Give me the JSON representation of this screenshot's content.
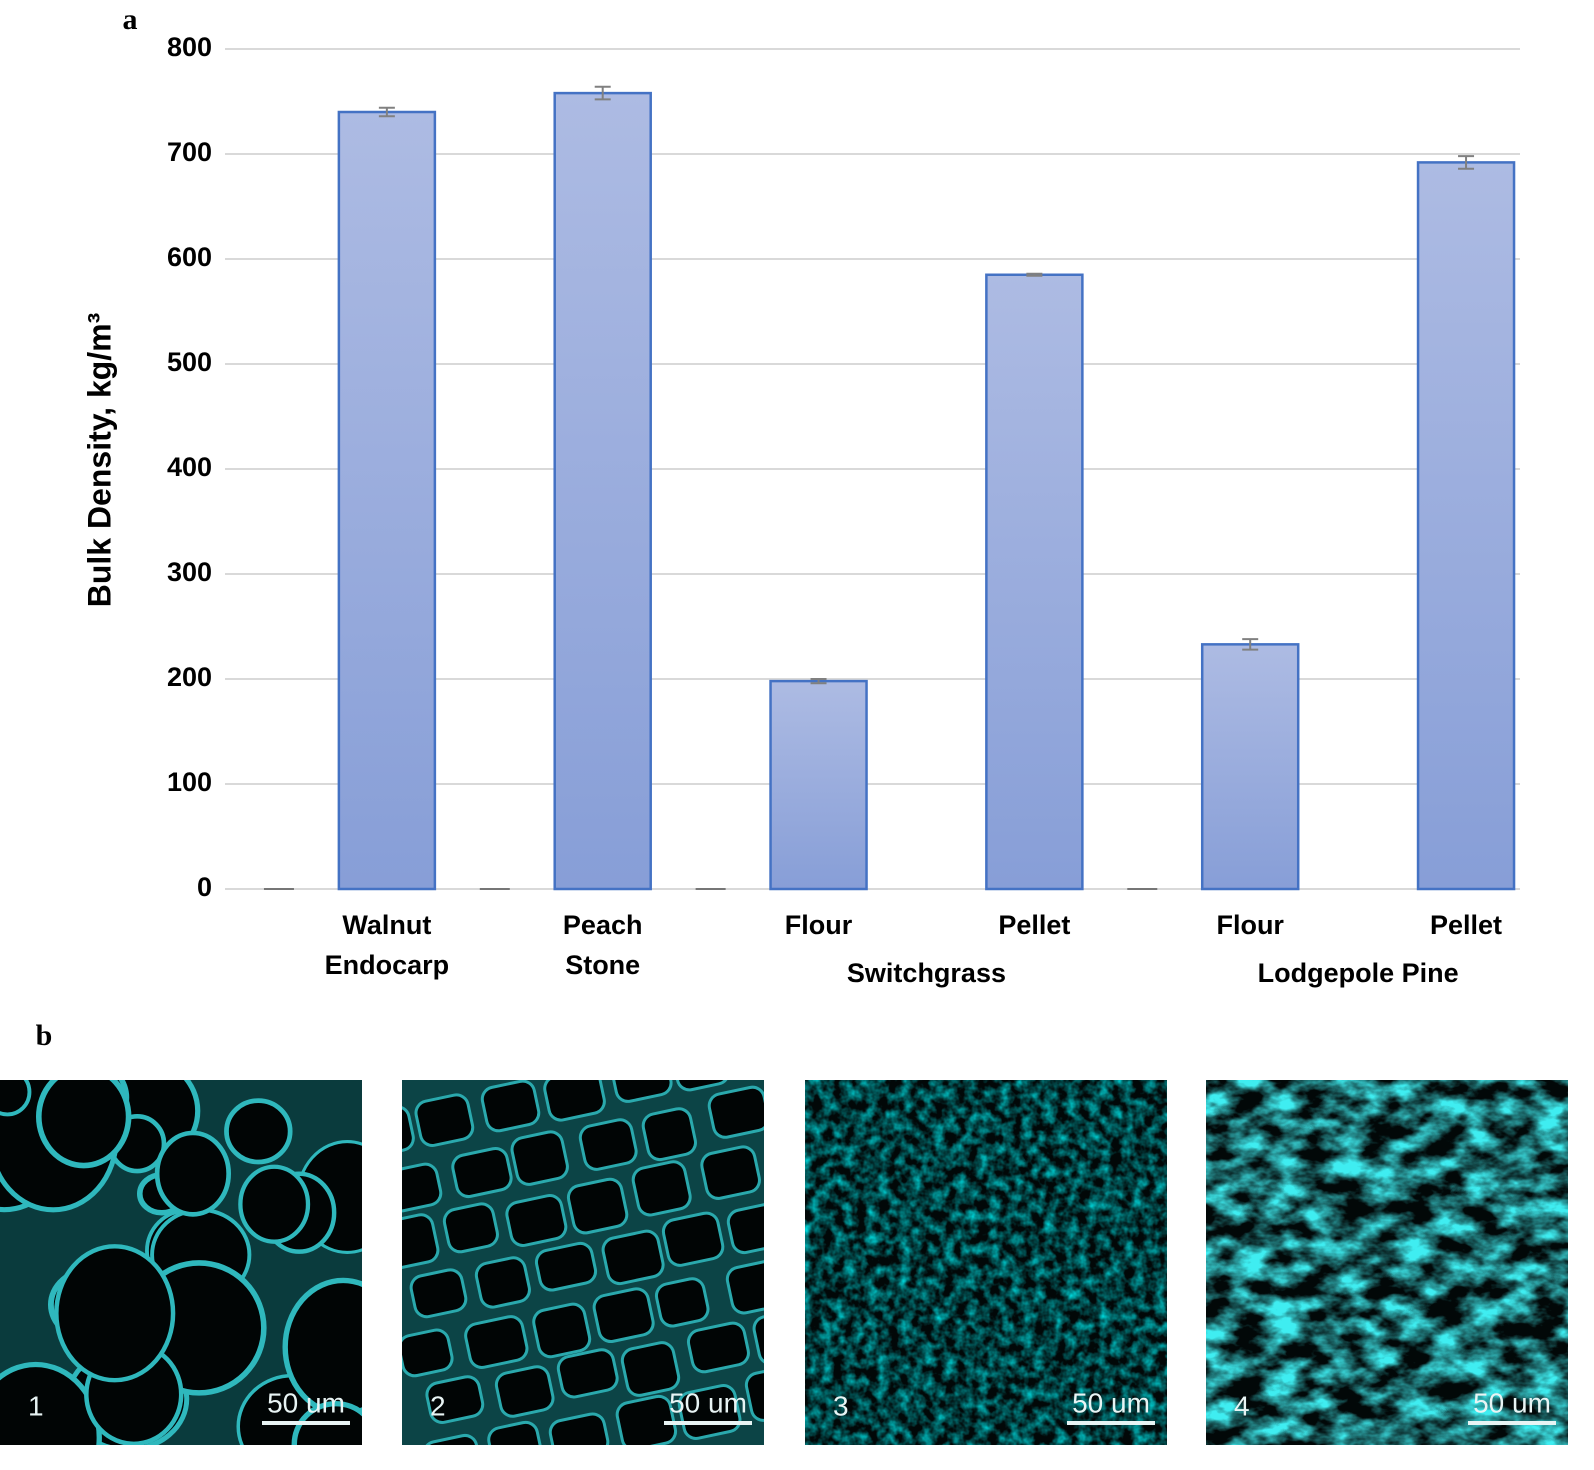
{
  "chart_data": {
    "type": "bar",
    "panel_label": "a",
    "ylabel": "Bulk Density, kg/m³",
    "categories": [
      null,
      "Walnut Endocarp",
      null,
      "Peach Stone",
      null,
      "Flour",
      null,
      "Pellet",
      null,
      "Flour",
      null,
      "Pellet"
    ],
    "values": [
      0,
      740,
      0,
      758,
      0,
      198,
      null,
      585,
      0,
      233,
      null,
      692
    ],
    "errors": [
      null,
      4,
      null,
      6,
      null,
      2,
      null,
      1,
      null,
      5,
      null,
      6
    ],
    "groups": [
      {
        "label": "Switchgrass",
        "from": 5,
        "to": 7
      },
      {
        "label": "Lodgepole Pine",
        "from": 9,
        "to": 11
      }
    ],
    "color": "#93a8dc",
    "edge_color": "#4472c4",
    "error_color": "#808080",
    "ylim": [
      0,
      800
    ],
    "yticks": [
      0,
      100,
      200,
      300,
      400,
      500,
      600,
      700,
      800
    ],
    "grid": true
  },
  "images": {
    "panel_label": "b",
    "panels": [
      {
        "label": "1",
        "scale": "50 um"
      },
      {
        "label": "2",
        "scale": "50 um"
      },
      {
        "label": "3",
        "scale": "50 um"
      },
      {
        "label": "4",
        "scale": "50 um"
      }
    ]
  }
}
